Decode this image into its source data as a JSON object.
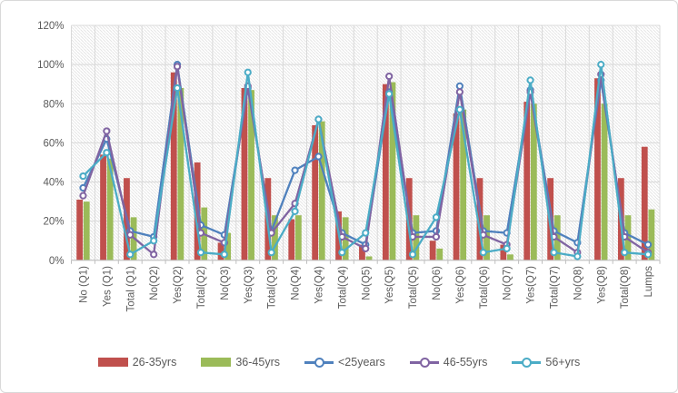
{
  "frame": {
    "background": "#ffffff",
    "border_color": "#d9d9d9"
  },
  "axes": {
    "y_tick_labels": [
      "0%",
      "20%",
      "40%",
      "60%",
      "80%",
      "100%",
      "120%"
    ],
    "y_min": 0,
    "y_max": 120,
    "y_step": 20,
    "label_color": "#595959",
    "gridline_color": "#d9d9d9",
    "axis_line_color": "#bfbfbf"
  },
  "legend": [
    {
      "label": "26-35yrs",
      "type": "bar",
      "color": "#C0504D"
    },
    {
      "label": "36-45yrs",
      "type": "bar",
      "color": "#9BBB59"
    },
    {
      "label": "<25years",
      "type": "line",
      "color": "#4F81BD"
    },
    {
      "label": "46-55yrs",
      "type": "line",
      "color": "#8064A2"
    },
    {
      "label": "56+yrs",
      "type": "line",
      "color": "#4BACC6"
    }
  ],
  "chart_data": {
    "type": "combo-bar-line",
    "categories": [
      "No (Q1)",
      "Yes (Q1)",
      "Total (Q1)",
      "No(Q2)",
      "Yes(Q2)",
      "Total(Q2)",
      "No(Q3)",
      "Yes(Q3)",
      "Total(Q3)",
      "No(Q4)",
      "Yes(Q4)",
      "Total(Q4)",
      "No(Q5)",
      "Yes(Q5)",
      "Total(Q5)",
      "No(Q6)",
      "Yes(Q6)",
      "Total(Q6)",
      "No(Q7)",
      "Yes(Q7)",
      "Total(Q7)",
      "No(Q8)",
      "Yes(Q8)",
      "Total(Q8)",
      "Lumps"
    ],
    "series": [
      {
        "name": "26-35yrs",
        "type": "bar",
        "color": "#C0504D",
        "values": [
          31,
          54,
          42,
          0,
          96,
          50,
          9,
          88,
          42,
          21,
          69,
          25,
          8,
          90,
          42,
          10,
          75,
          42,
          8,
          81,
          42,
          0,
          93,
          42,
          58
        ]
      },
      {
        "name": "36-45yrs",
        "type": "bar",
        "color": "#9BBB59",
        "values": [
          30,
          52,
          22,
          0,
          88,
          27,
          14,
          87,
          23,
          23,
          71,
          22,
          2,
          91,
          23,
          6,
          77,
          23,
          3,
          80,
          23,
          0,
          80,
          23,
          26
        ]
      },
      {
        "name": "<25years",
        "type": "line",
        "color": "#4F81BD",
        "values": [
          37,
          62,
          15,
          12,
          100,
          18,
          13,
          88,
          15,
          46,
          53,
          14,
          8,
          86,
          14,
          15,
          89,
          15,
          14,
          87,
          15,
          9,
          92,
          14,
          8
        ]
      },
      {
        "name": "46-55yrs",
        "type": "line",
        "color": "#8064A2",
        "values": [
          33,
          66,
          13,
          3,
          99,
          14,
          9,
          89,
          14,
          29,
          72,
          12,
          6,
          94,
          12,
          12,
          86,
          13,
          8,
          86,
          12,
          4,
          95,
          12,
          4
        ]
      },
      {
        "name": "56+yrs",
        "type": "line",
        "color": "#4BACC6",
        "values": [
          43,
          55,
          3,
          10,
          88,
          4,
          3,
          96,
          4,
          25,
          72,
          4,
          14,
          85,
          3,
          22,
          77,
          4,
          6,
          92,
          4,
          2,
          100,
          4,
          3
        ]
      }
    ],
    "ylim": [
      0,
      120
    ],
    "grid": true,
    "plot_background": "diagonal-hatch",
    "legend_position": "bottom"
  }
}
